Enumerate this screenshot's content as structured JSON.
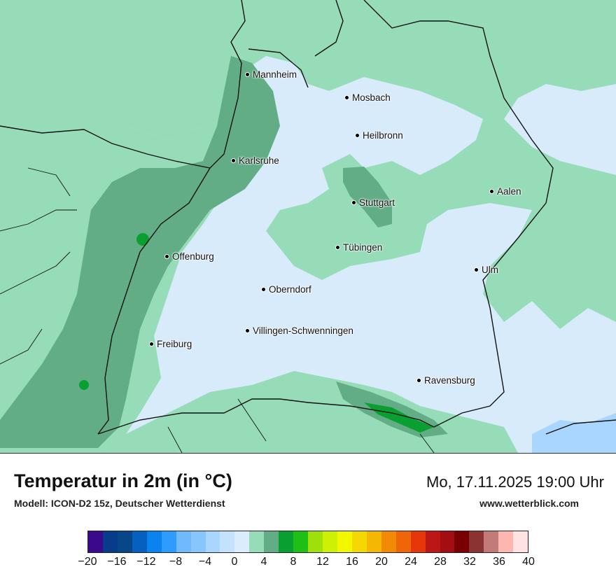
{
  "map": {
    "cities": [
      {
        "name": "Mannheim"
      },
      {
        "name": "Mosbach"
      },
      {
        "name": "Heilbronn"
      },
      {
        "name": "Karlsruhe"
      },
      {
        "name": "Aalen"
      },
      {
        "name": "Stuttgart"
      },
      {
        "name": "Tübingen"
      },
      {
        "name": "Offenburg"
      },
      {
        "name": "Ulm"
      },
      {
        "name": "Oberndorf"
      },
      {
        "name": "Villingen-Schwenningen"
      },
      {
        "name": "Freiburg"
      },
      {
        "name": "Ravensburg"
      }
    ]
  },
  "header": {
    "title": "Temperatur in 2m (in °C)",
    "model": "Modell: ICON-D2 15z, Deutscher Wetterdienst",
    "datetime": "Mo, 17.11.2025 19:00 Uhr",
    "website": "www.wetterblick.com"
  },
  "legend": {
    "colors": [
      "#3b0a8c",
      "#063c8a",
      "#08468a",
      "#0560c0",
      "#0a83ee",
      "#2e9bff",
      "#71b9fd",
      "#87c5fd",
      "#a9d6fe",
      "#c5e2fd",
      "#dbecfc",
      "#96dcb9",
      "#62ad86",
      "#09a031",
      "#20bf15",
      "#a0e00a",
      "#cdf004",
      "#f2f700",
      "#f4d804",
      "#f3b704",
      "#f28a08",
      "#ef6608",
      "#e5370a",
      "#bd1616",
      "#a20e12",
      "#780000",
      "#8b3333",
      "#c57a7a",
      "#fdb6b0",
      "#ffe2e2"
    ],
    "tick_labels": [
      "−20",
      "−16",
      "−12",
      "−8",
      "−4",
      "0",
      "4",
      "8",
      "12",
      "16",
      "20",
      "24",
      "28",
      "32",
      "36",
      "40"
    ]
  }
}
